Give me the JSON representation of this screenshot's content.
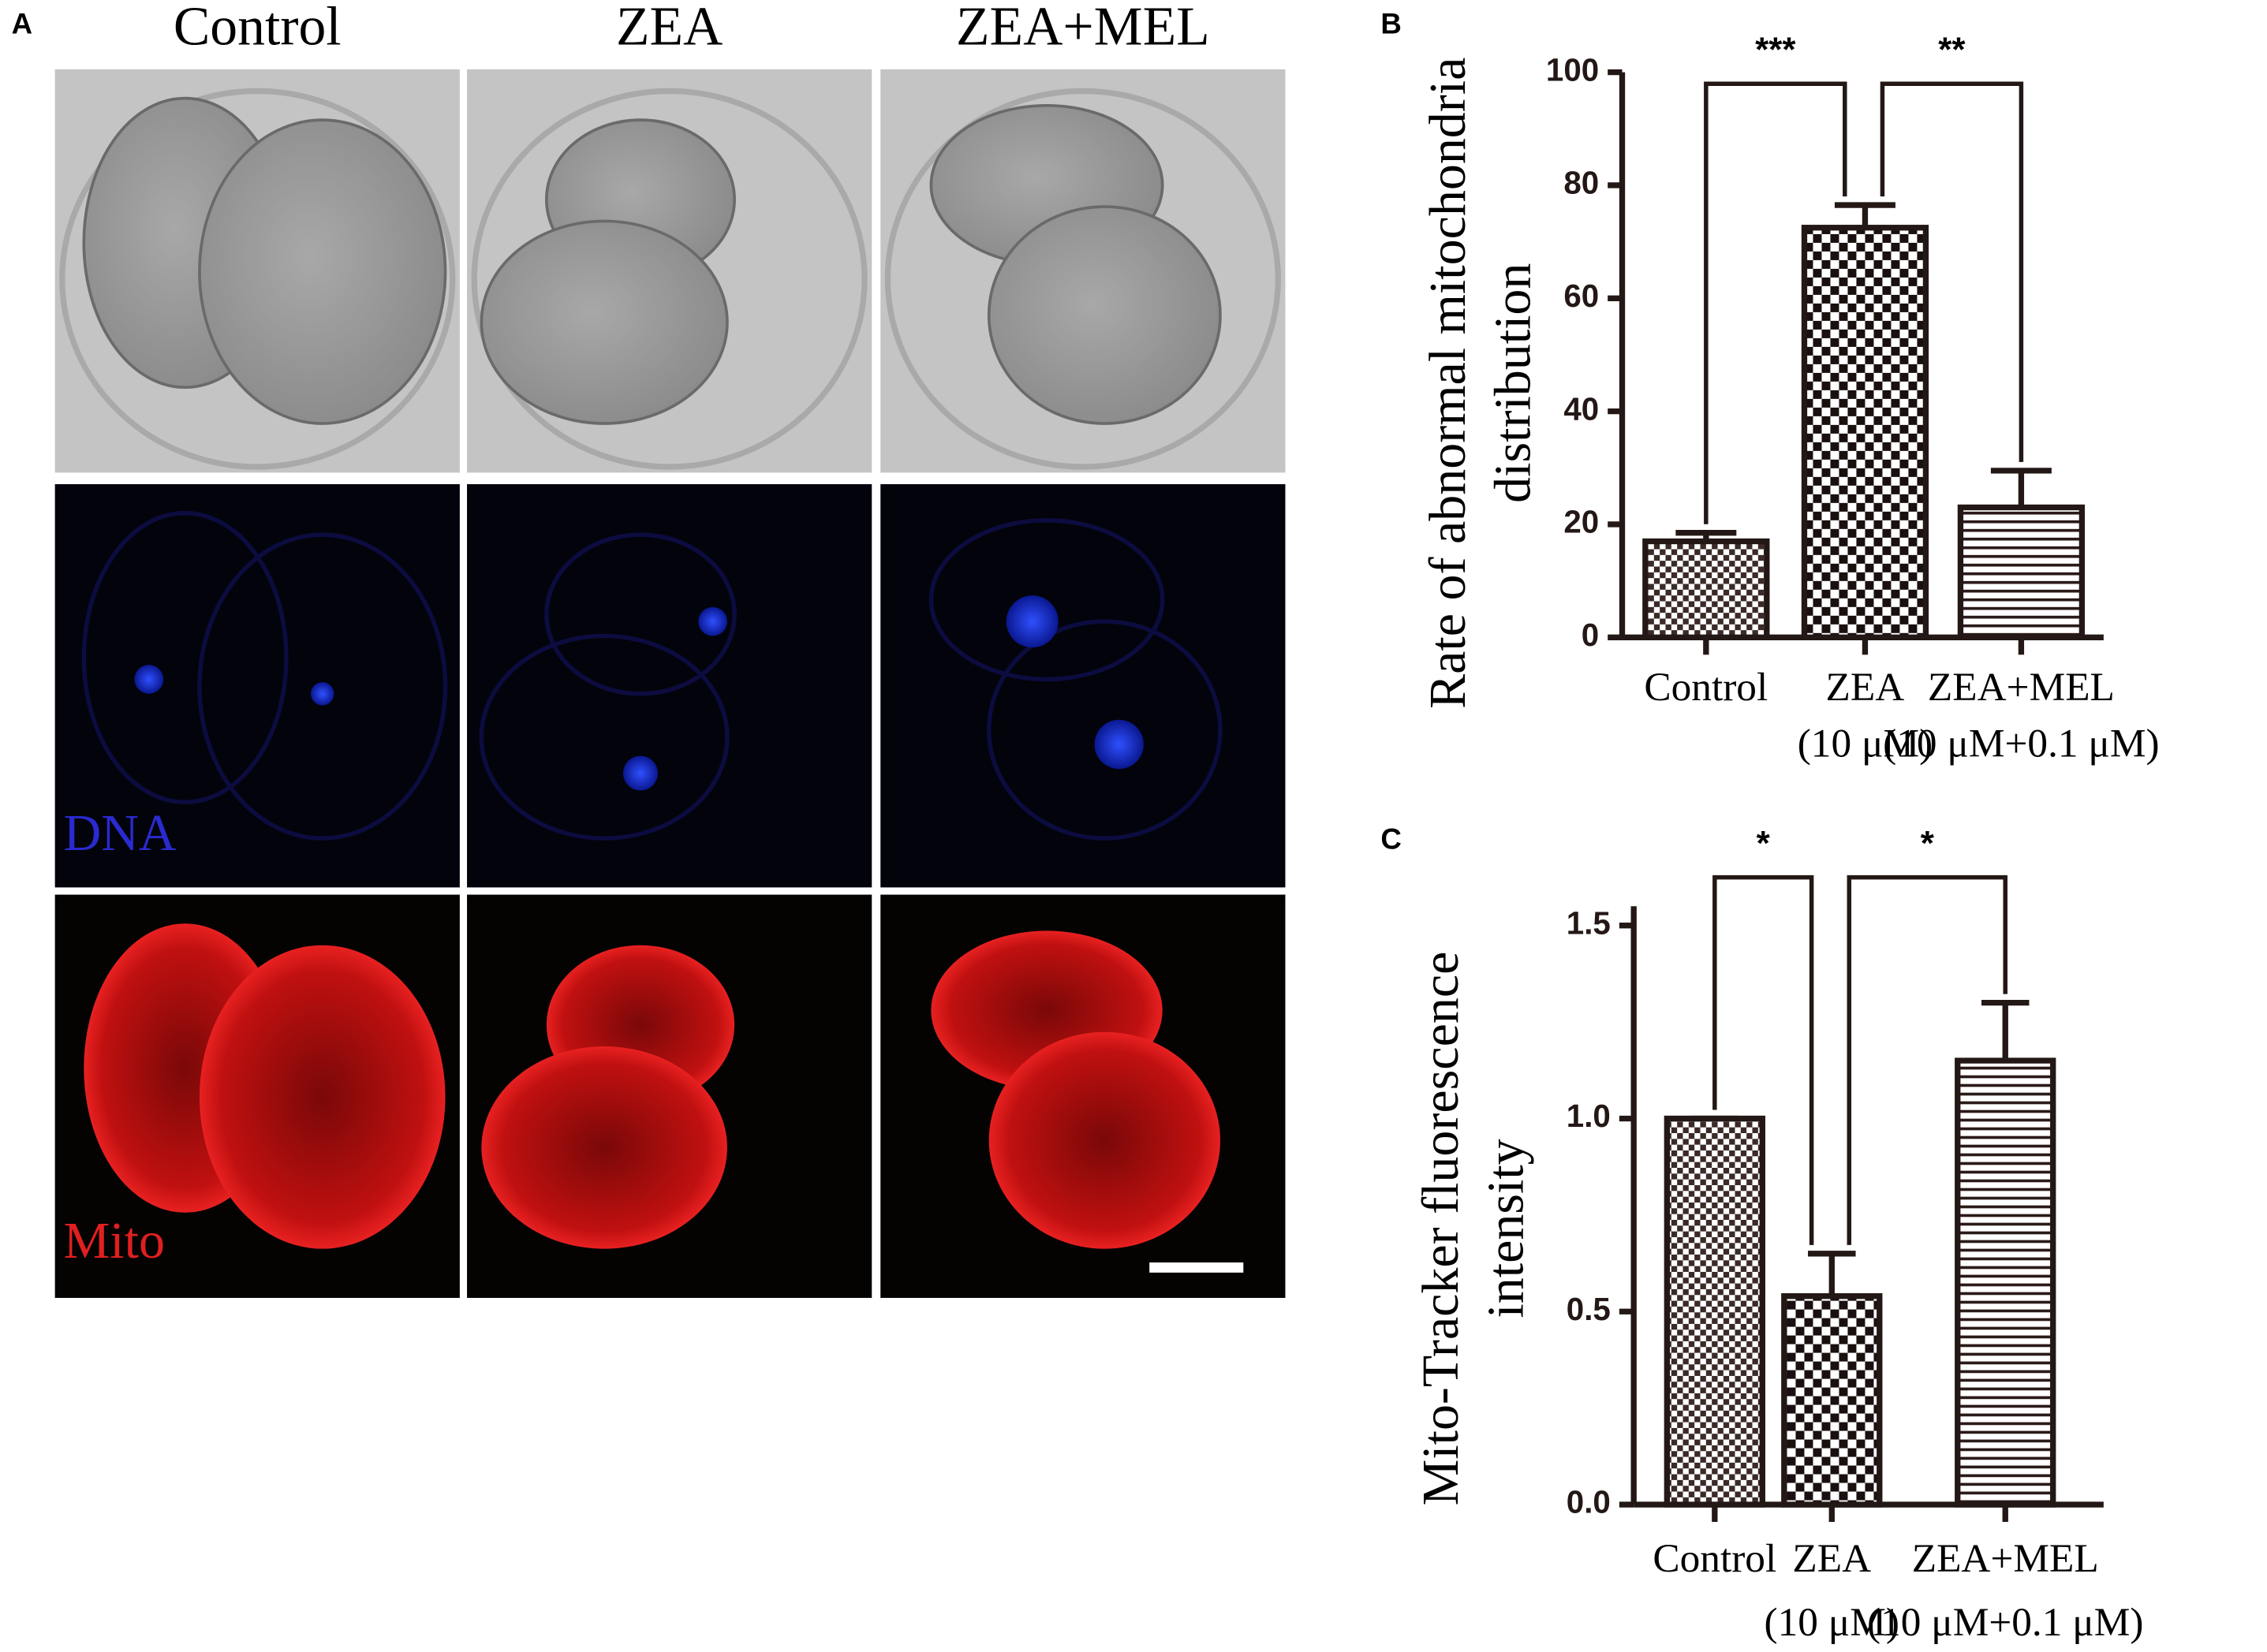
{
  "panel_a": {
    "label": "A",
    "columns": [
      "Control",
      "ZEA",
      "ZEA+MEL"
    ],
    "row_labels": [
      "DNA",
      "Mito"
    ]
  },
  "chart_data": [
    {
      "type": "bar",
      "panel_label": "B",
      "ylabel": [
        "Rate of abnormal mitochondria",
        "distribution"
      ],
      "categories": [
        "Control",
        "ZEA",
        "ZEA+MEL"
      ],
      "category_sublabels": [
        null,
        "(10 μM)",
        "(10 μM+0.1 μM)"
      ],
      "values": [
        17,
        72.5,
        23
      ],
      "errors": [
        1.5,
        4,
        6.5
      ],
      "patterns": [
        "fine-check",
        "coarse-check",
        "stripes"
      ],
      "color": "#231815",
      "ylim": [
        0,
        100
      ],
      "yticks": [
        0,
        20,
        40,
        60,
        80,
        100
      ],
      "significance_labels": [
        "***",
        "**"
      ]
    },
    {
      "type": "bar",
      "panel_label": "C",
      "ylabel": [
        "Mito-Tracker fluorescence",
        "intensity"
      ],
      "categories": [
        "Control",
        "ZEA",
        "ZEA+MEL"
      ],
      "category_sublabels": [
        null,
        "(10 μM)",
        "(10 μM+0.1 μM)"
      ],
      "values": [
        1.0,
        0.54,
        1.15
      ],
      "errors": [
        0,
        0.11,
        0.15
      ],
      "patterns": [
        "fine-check",
        "coarse-check",
        "stripes"
      ],
      "color": "#231815",
      "ylim": [
        0,
        1.55
      ],
      "yticks": [
        {
          "value": 0,
          "label": "0.0"
        },
        0.5,
        {
          "value": 1,
          "label": "1.0"
        },
        1.5
      ],
      "significance_labels": [
        "*",
        "*"
      ]
    }
  ]
}
